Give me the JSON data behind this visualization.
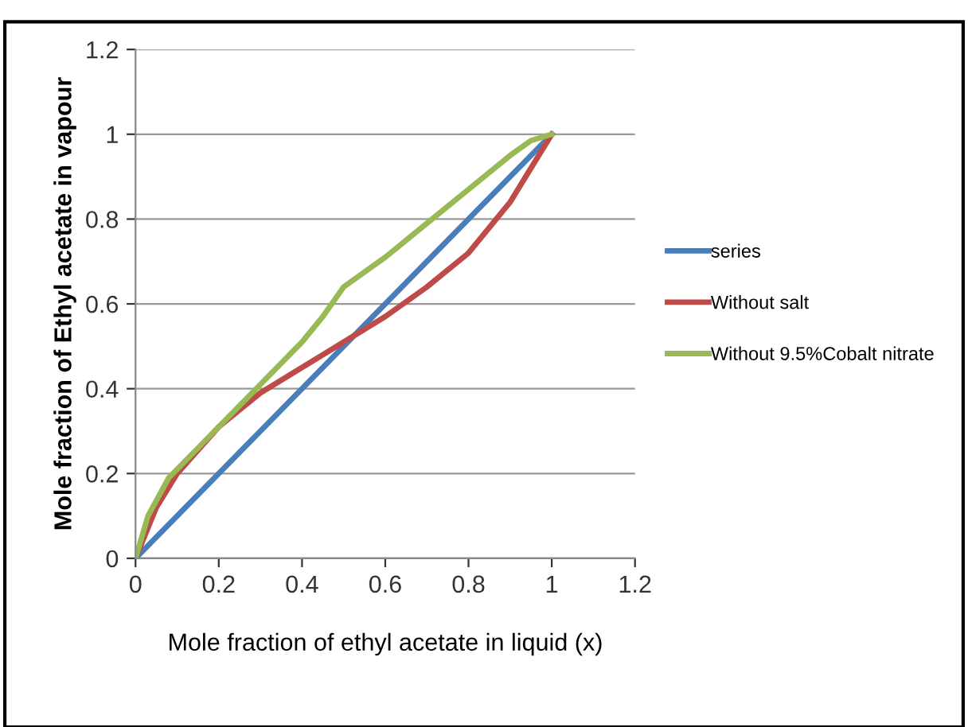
{
  "chart_data": {
    "type": "line",
    "xlabel": "Mole fraction of ethyl acetate in liquid (x)",
    "ylabel": "Mole fraction of Ethyl acetate in vapour",
    "series": [
      {
        "name": "series",
        "color": "#4a7ebb",
        "x": [
          0,
          1
        ],
        "values": [
          0,
          1
        ]
      },
      {
        "name": "Without salt",
        "color": "#be4b48",
        "x": [
          0,
          0.05,
          0.1,
          0.2,
          0.3,
          0.4,
          0.5,
          0.6,
          0.7,
          0.8,
          0.9,
          0.95,
          1
        ],
        "values": [
          0,
          0.12,
          0.2,
          0.31,
          0.39,
          0.45,
          0.51,
          0.57,
          0.64,
          0.72,
          0.84,
          0.92,
          1
        ]
      },
      {
        "name": "Without 9.5%Cobalt nitrate",
        "color": "#98b954",
        "x": [
          0,
          0.03,
          0.08,
          0.15,
          0.2,
          0.3,
          0.4,
          0.45,
          0.5,
          0.6,
          0.7,
          0.8,
          0.9,
          0.95,
          1
        ],
        "values": [
          0,
          0.1,
          0.19,
          0.26,
          0.31,
          0.41,
          0.51,
          0.57,
          0.64,
          0.71,
          0.79,
          0.87,
          0.95,
          0.985,
          1
        ]
      }
    ],
    "xlim": [
      0,
      1.2
    ],
    "ylim": [
      0,
      1.2
    ],
    "xticks": [
      0,
      0.2,
      0.4,
      0.6,
      0.8,
      1,
      1.2
    ],
    "yticks": [
      0,
      0.2,
      0.4,
      0.6,
      0.8,
      1,
      1.2
    ],
    "grid": "y",
    "legend": "right",
    "marker": "none",
    "line_style": "solid"
  }
}
